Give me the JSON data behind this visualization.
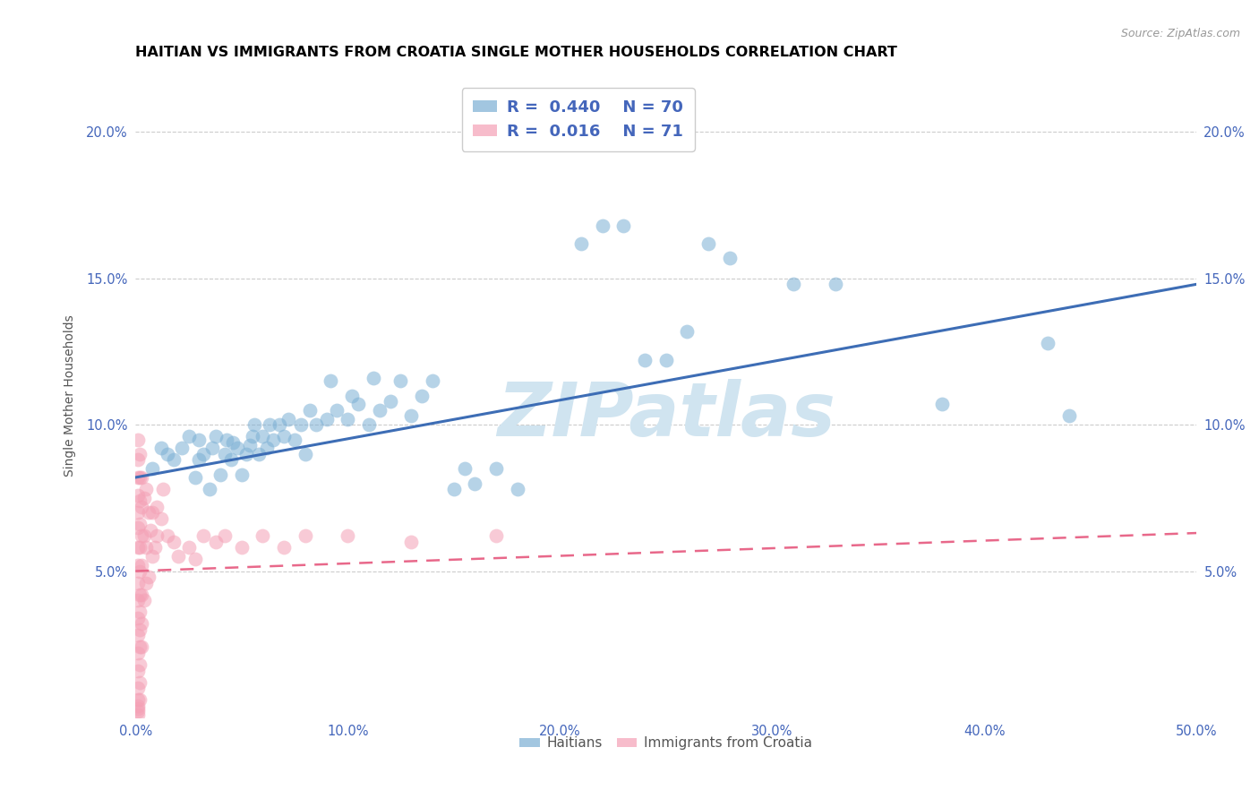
{
  "title": "HAITIAN VS IMMIGRANTS FROM CROATIA SINGLE MOTHER HOUSEHOLDS CORRELATION CHART",
  "source": "Source: ZipAtlas.com",
  "ylabel": "Single Mother Households",
  "xlim": [
    0.0,
    0.5
  ],
  "ylim": [
    0.0,
    0.22
  ],
  "xticks": [
    0.0,
    0.1,
    0.2,
    0.3,
    0.4,
    0.5
  ],
  "yticks": [
    0.05,
    0.1,
    0.15,
    0.2
  ],
  "xtick_labels": [
    "0.0%",
    "10.0%",
    "20.0%",
    "30.0%",
    "40.0%",
    "50.0%"
  ],
  "ytick_labels": [
    "5.0%",
    "10.0%",
    "15.0%",
    "20.0%"
  ],
  "blue_color": "#7BAFD4",
  "pink_color": "#F4A0B5",
  "blue_line_color": "#3D6DB5",
  "pink_line_color": "#E8688A",
  "tick_color": "#4466BB",
  "watermark": "ZIPatlas",
  "watermark_color": "#D0E4F0",
  "blue_scatter_x": [
    0.008,
    0.012,
    0.015,
    0.018,
    0.022,
    0.025,
    0.028,
    0.03,
    0.03,
    0.032,
    0.035,
    0.036,
    0.038,
    0.04,
    0.042,
    0.043,
    0.045,
    0.046,
    0.048,
    0.05,
    0.052,
    0.054,
    0.055,
    0.056,
    0.058,
    0.06,
    0.062,
    0.063,
    0.065,
    0.068,
    0.07,
    0.072,
    0.075,
    0.078,
    0.08,
    0.082,
    0.085,
    0.09,
    0.092,
    0.095,
    0.1,
    0.102,
    0.105,
    0.11,
    0.112,
    0.115,
    0.12,
    0.125,
    0.13,
    0.135,
    0.14,
    0.15,
    0.155,
    0.16,
    0.17,
    0.18,
    0.2,
    0.21,
    0.22,
    0.23,
    0.24,
    0.25,
    0.26,
    0.27,
    0.28,
    0.31,
    0.33,
    0.38,
    0.43,
    0.44
  ],
  "blue_scatter_y": [
    0.085,
    0.092,
    0.09,
    0.088,
    0.092,
    0.096,
    0.082,
    0.088,
    0.095,
    0.09,
    0.078,
    0.092,
    0.096,
    0.083,
    0.09,
    0.095,
    0.088,
    0.094,
    0.092,
    0.083,
    0.09,
    0.093,
    0.096,
    0.1,
    0.09,
    0.096,
    0.092,
    0.1,
    0.095,
    0.1,
    0.096,
    0.102,
    0.095,
    0.1,
    0.09,
    0.105,
    0.1,
    0.102,
    0.115,
    0.105,
    0.102,
    0.11,
    0.107,
    0.1,
    0.116,
    0.105,
    0.108,
    0.115,
    0.103,
    0.11,
    0.115,
    0.078,
    0.085,
    0.08,
    0.085,
    0.078,
    0.21,
    0.162,
    0.168,
    0.168,
    0.122,
    0.122,
    0.132,
    0.162,
    0.157,
    0.148,
    0.148,
    0.107,
    0.128,
    0.103
  ],
  "pink_scatter_x": [
    0.001,
    0.001,
    0.001,
    0.001,
    0.001,
    0.001,
    0.001,
    0.001,
    0.001,
    0.001,
    0.001,
    0.001,
    0.001,
    0.001,
    0.001,
    0.001,
    0.001,
    0.001,
    0.001,
    0.001,
    0.002,
    0.002,
    0.002,
    0.002,
    0.002,
    0.002,
    0.002,
    0.002,
    0.002,
    0.002,
    0.002,
    0.002,
    0.002,
    0.003,
    0.003,
    0.003,
    0.003,
    0.003,
    0.003,
    0.003,
    0.004,
    0.004,
    0.004,
    0.005,
    0.005,
    0.005,
    0.006,
    0.006,
    0.007,
    0.008,
    0.008,
    0.009,
    0.01,
    0.01,
    0.012,
    0.013,
    0.015,
    0.018,
    0.02,
    0.025,
    0.028,
    0.032,
    0.038,
    0.042,
    0.05,
    0.06,
    0.07,
    0.08,
    0.1,
    0.13,
    0.17
  ],
  "pink_scatter_y": [
    0.095,
    0.088,
    0.082,
    0.076,
    0.07,
    0.065,
    0.058,
    0.052,
    0.046,
    0.04,
    0.034,
    0.028,
    0.022,
    0.016,
    0.01,
    0.006,
    0.004,
    0.003,
    0.002,
    0.001,
    0.09,
    0.082,
    0.074,
    0.066,
    0.058,
    0.05,
    0.042,
    0.036,
    0.03,
    0.024,
    0.018,
    0.012,
    0.006,
    0.082,
    0.072,
    0.062,
    0.052,
    0.042,
    0.032,
    0.024,
    0.075,
    0.062,
    0.04,
    0.078,
    0.058,
    0.046,
    0.07,
    0.048,
    0.064,
    0.07,
    0.055,
    0.058,
    0.072,
    0.062,
    0.068,
    0.078,
    0.062,
    0.06,
    0.055,
    0.058,
    0.054,
    0.062,
    0.06,
    0.062,
    0.058,
    0.062,
    0.058,
    0.062,
    0.062,
    0.06,
    0.062
  ],
  "blue_line_x": [
    0.0,
    0.5
  ],
  "blue_line_y": [
    0.082,
    0.148
  ],
  "pink_line_x": [
    0.0,
    0.5
  ],
  "pink_line_y": [
    0.05,
    0.063
  ],
  "title_fontsize": 11.5,
  "axis_label_fontsize": 10,
  "tick_fontsize": 10.5
}
